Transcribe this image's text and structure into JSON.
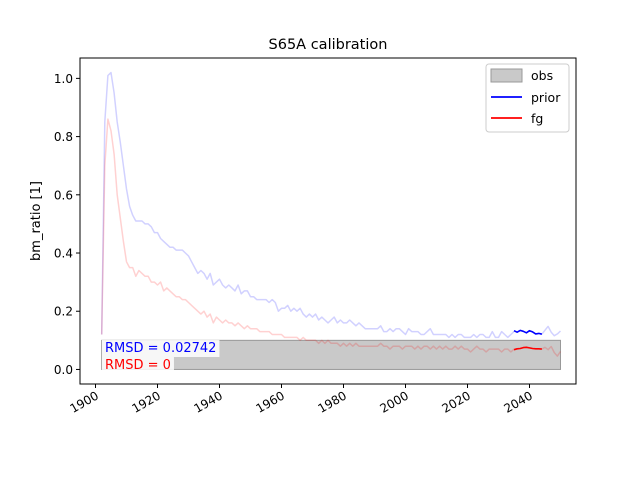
{
  "chart_data": {
    "type": "line",
    "title": "S65A calibration",
    "xlabel": "",
    "ylabel": "bm_ratio [1]",
    "xlim": [
      1895,
      2055
    ],
    "ylim": [
      -0.05,
      1.07
    ],
    "grid": false,
    "legend_position": "top-right",
    "x_ticks": [
      1900,
      1920,
      1940,
      1960,
      1980,
      2000,
      2020,
      2040
    ],
    "x_tick_labels": [
      "1900",
      "1920",
      "1940",
      "1960",
      "1980",
      "2000",
      "2020",
      "2040"
    ],
    "y_ticks": [
      0.0,
      0.2,
      0.4,
      0.6,
      0.8,
      1.0
    ],
    "y_tick_labels": [
      "0.0",
      "0.2",
      "0.4",
      "0.6",
      "0.8",
      "1.0"
    ],
    "obs_band": {
      "name": "obs",
      "x": [
        1902,
        2050
      ],
      "ymin": 0.0,
      "ymax": 0.1,
      "color": "#c9c9c9",
      "edge": "#999999"
    },
    "series": [
      {
        "name": "prior",
        "color": "#0000ff",
        "background": {
          "x": [
            1902,
            1903,
            1904,
            1905,
            1906,
            1907,
            1908,
            1909,
            1910,
            1911,
            1912,
            1913,
            1914,
            1915,
            1916,
            1917,
            1918,
            1919,
            1920,
            1921,
            1922,
            1923,
            1924,
            1925,
            1926,
            1927,
            1928,
            1929,
            1930,
            1931,
            1932,
            1933,
            1934,
            1935,
            1936,
            1937,
            1938,
            1939,
            1940,
            1941,
            1942,
            1943,
            1944,
            1945,
            1946,
            1947,
            1948,
            1949,
            1950,
            1951,
            1952,
            1953,
            1954,
            1955,
            1956,
            1957,
            1958,
            1959,
            1960,
            1961,
            1962,
            1963,
            1964,
            1965,
            1966,
            1967,
            1968,
            1969,
            1970,
            1971,
            1972,
            1973,
            1974,
            1975,
            1976,
            1977,
            1978,
            1979,
            1980,
            1981,
            1982,
            1983,
            1984,
            1985,
            1986,
            1987,
            1988,
            1989,
            1990,
            1991,
            1992,
            1993,
            1994,
            1995,
            1996,
            1997,
            1998,
            1999,
            2000,
            2001,
            2002,
            2003,
            2004,
            2005,
            2006,
            2007,
            2008,
            2009,
            2010,
            2011,
            2012,
            2013,
            2014,
            2015,
            2016,
            2017,
            2018,
            2019,
            2020,
            2021,
            2022,
            2023,
            2024,
            2025,
            2026,
            2027,
            2028,
            2029,
            2030,
            2031,
            2032,
            2033,
            2034,
            2035
          ],
          "y": [
            0.12,
            0.85,
            1.01,
            1.02,
            0.95,
            0.85,
            0.78,
            0.7,
            0.62,
            0.56,
            0.53,
            0.51,
            0.51,
            0.51,
            0.5,
            0.5,
            0.49,
            0.47,
            0.47,
            0.45,
            0.44,
            0.43,
            0.42,
            0.42,
            0.41,
            0.41,
            0.41,
            0.4,
            0.39,
            0.37,
            0.35,
            0.33,
            0.34,
            0.33,
            0.31,
            0.33,
            0.29,
            0.3,
            0.31,
            0.29,
            0.28,
            0.29,
            0.28,
            0.27,
            0.29,
            0.26,
            0.27,
            0.27,
            0.25,
            0.25,
            0.24,
            0.24,
            0.24,
            0.24,
            0.23,
            0.24,
            0.23,
            0.2,
            0.21,
            0.21,
            0.22,
            0.2,
            0.21,
            0.2,
            0.21,
            0.19,
            0.18,
            0.19,
            0.18,
            0.19,
            0.17,
            0.18,
            0.17,
            0.16,
            0.17,
            0.18,
            0.16,
            0.17,
            0.16,
            0.16,
            0.17,
            0.16,
            0.15,
            0.16,
            0.15,
            0.14,
            0.14,
            0.14,
            0.14,
            0.14,
            0.15,
            0.13,
            0.13,
            0.14,
            0.13,
            0.14,
            0.14,
            0.13,
            0.12,
            0.14,
            0.13,
            0.13,
            0.13,
            0.12,
            0.12,
            0.13,
            0.14,
            0.12,
            0.12,
            0.12,
            0.12,
            0.12,
            0.11,
            0.12,
            0.11,
            0.12,
            0.12,
            0.11,
            0.11,
            0.11,
            0.12,
            0.11,
            0.12,
            0.12,
            0.11,
            0.11,
            0.13,
            0.11,
            0.11,
            0.13,
            0.12,
            0.11,
            0.12,
            0.13
          ]
        },
        "x": [
          2035,
          2036,
          2037,
          2038,
          2039,
          2040,
          2041,
          2042,
          2043,
          2044
        ],
        "y": [
          0.133,
          0.128,
          0.134,
          0.131,
          0.126,
          0.133,
          0.129,
          0.122,
          0.124,
          0.121
        ],
        "tail": {
          "x": [
            2044,
            2045,
            2046,
            2047,
            2048,
            2049,
            2050
          ],
          "y": [
            0.121,
            0.135,
            0.148,
            0.128,
            0.116,
            0.122,
            0.132
          ]
        }
      },
      {
        "name": "fg",
        "color": "#ff0000",
        "background": {
          "x": [
            1902,
            1903,
            1904,
            1905,
            1906,
            1907,
            1908,
            1909,
            1910,
            1911,
            1912,
            1913,
            1914,
            1915,
            1916,
            1917,
            1918,
            1919,
            1920,
            1921,
            1922,
            1923,
            1924,
            1925,
            1926,
            1927,
            1928,
            1929,
            1930,
            1931,
            1932,
            1933,
            1934,
            1935,
            1936,
            1937,
            1938,
            1939,
            1940,
            1941,
            1942,
            1943,
            1944,
            1945,
            1946,
            1947,
            1948,
            1949,
            1950,
            1951,
            1952,
            1953,
            1954,
            1955,
            1956,
            1957,
            1958,
            1959,
            1960,
            1961,
            1962,
            1963,
            1964,
            1965,
            1966,
            1967,
            1968,
            1969,
            1970,
            1971,
            1972,
            1973,
            1974,
            1975,
            1976,
            1977,
            1978,
            1979,
            1980,
            1981,
            1982,
            1983,
            1984,
            1985,
            1986,
            1987,
            1988,
            1989,
            1990,
            1991,
            1992,
            1993,
            1994,
            1995,
            1996,
            1997,
            1998,
            1999,
            2000,
            2001,
            2002,
            2003,
            2004,
            2005,
            2006,
            2007,
            2008,
            2009,
            2010,
            2011,
            2012,
            2013,
            2014,
            2015,
            2016,
            2017,
            2018,
            2019,
            2020,
            2021,
            2022,
            2023,
            2024,
            2025,
            2026,
            2027,
            2028,
            2029,
            2030,
            2031,
            2032,
            2033,
            2034,
            2035
          ],
          "y": [
            0.12,
            0.7,
            0.86,
            0.82,
            0.74,
            0.6,
            0.52,
            0.44,
            0.37,
            0.35,
            0.35,
            0.32,
            0.34,
            0.33,
            0.32,
            0.32,
            0.3,
            0.3,
            0.29,
            0.3,
            0.27,
            0.28,
            0.27,
            0.26,
            0.25,
            0.25,
            0.24,
            0.24,
            0.23,
            0.22,
            0.21,
            0.2,
            0.19,
            0.2,
            0.18,
            0.19,
            0.16,
            0.18,
            0.17,
            0.16,
            0.17,
            0.16,
            0.16,
            0.15,
            0.16,
            0.15,
            0.14,
            0.15,
            0.14,
            0.14,
            0.14,
            0.13,
            0.13,
            0.13,
            0.13,
            0.12,
            0.12,
            0.12,
            0.12,
            0.11,
            0.11,
            0.11,
            0.11,
            0.11,
            0.1,
            0.11,
            0.1,
            0.1,
            0.1,
            0.1,
            0.09,
            0.1,
            0.09,
            0.1,
            0.09,
            0.09,
            0.09,
            0.08,
            0.09,
            0.08,
            0.09,
            0.08,
            0.09,
            0.08,
            0.08,
            0.08,
            0.08,
            0.08,
            0.08,
            0.08,
            0.09,
            0.08,
            0.08,
            0.07,
            0.08,
            0.08,
            0.08,
            0.07,
            0.08,
            0.08,
            0.08,
            0.07,
            0.08,
            0.07,
            0.08,
            0.08,
            0.07,
            0.08,
            0.07,
            0.08,
            0.07,
            0.08,
            0.07,
            0.07,
            0.08,
            0.07,
            0.08,
            0.07,
            0.07,
            0.06,
            0.07,
            0.08,
            0.07,
            0.07,
            0.06,
            0.07,
            0.07,
            0.07,
            0.07,
            0.06,
            0.07,
            0.07,
            0.06,
            0.07
          ]
        },
        "x": [
          2035,
          2036,
          2037,
          2038,
          2039,
          2040,
          2041,
          2042,
          2043,
          2044
        ],
        "y": [
          0.068,
          0.071,
          0.072,
          0.075,
          0.076,
          0.074,
          0.072,
          0.071,
          0.071,
          0.07
        ],
        "tail": {
          "x": [
            2044,
            2045,
            2046,
            2047,
            2048,
            2049,
            2050
          ],
          "y": [
            0.07,
            0.076,
            0.068,
            0.079,
            0.058,
            0.046,
            0.062
          ]
        }
      }
    ],
    "annotations": [
      {
        "text": "RMSD = 0.02742",
        "color": "#0000ff"
      },
      {
        "text": "RMSD = 0",
        "color": "#ff0000"
      }
    ]
  }
}
